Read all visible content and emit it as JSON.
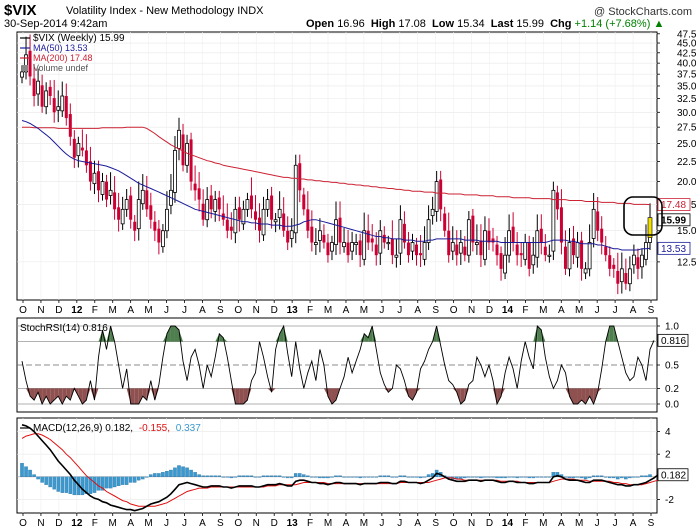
{
  "header": {
    "symbol": "$VIX",
    "name": "Volatility Index - New Methodology",
    "exchange": "INDX",
    "credit": "@ StockCharts.com",
    "date": "30-Sep-2014 9:42am",
    "open_label": "Open",
    "open": "16.96",
    "high_label": "High",
    "high": "17.08",
    "low_label": "Low",
    "low": "15.34",
    "last_label": "Last",
    "last": "15.99",
    "chg_label": "Chg",
    "chg": "+1.14 (+7.68%)",
    "chg_arrow": "▲"
  },
  "colors": {
    "up": "#000000",
    "down": "#cc0033",
    "ma50": "#1a1a99",
    "ma200": "#cc2233",
    "rsi_fill_hi": "#4f7f4f",
    "rsi_fill_lo": "#8f5050",
    "macd_hist": "#3a9ad0",
    "macd_line": "#000000",
    "signal_line": "#e01010"
  },
  "chart_data": [
    {
      "type": "candlestick",
      "panel": "price",
      "legend": [
        {
          "label": "$VIX (Weekly) 15.99",
          "color": "#000000"
        },
        {
          "label": "MA(50) 13.53",
          "color": "#1a1a99"
        },
        {
          "label": "MA(200) 17.48",
          "color": "#cc2233"
        },
        {
          "label": "Volume undef",
          "color": "#555555"
        }
      ],
      "yticks": [
        "47.5",
        "45.0",
        "42.5",
        "40.0",
        "37.5",
        "35.0",
        "32.5",
        "30.0",
        "27.5",
        "25.0",
        "22.5",
        "20.0",
        "17.5",
        "15.0",
        "12.5"
      ],
      "ylim": [
        10,
        48
      ],
      "scale": "log",
      "last_labels": [
        {
          "value": 17.48,
          "text": "17.48",
          "color": "#cc2233"
        },
        {
          "value": 15.99,
          "text": "15.99",
          "color": "#000000"
        },
        {
          "value": 13.53,
          "text": "13.53",
          "color": "#1a1a99"
        }
      ],
      "weeks": 157,
      "close": [
        38,
        42,
        37,
        33,
        36,
        31,
        34,
        33,
        30,
        31,
        33,
        29,
        26,
        23,
        25,
        24,
        22,
        20,
        21,
        19,
        20,
        18,
        19,
        17,
        16,
        17,
        18,
        16,
        15,
        18,
        19,
        17,
        16,
        15,
        14,
        15,
        17,
        19,
        24,
        27,
        22,
        25,
        20,
        19,
        18,
        16,
        18,
        17,
        18,
        17,
        16,
        15,
        15,
        17,
        16,
        17,
        18,
        17,
        16,
        15,
        17,
        18,
        16,
        16,
        17,
        15,
        14,
        15,
        22,
        19,
        17,
        15,
        14,
        14,
        15,
        14,
        13,
        14,
        16,
        14,
        14,
        13,
        14,
        14,
        13,
        15,
        14,
        14,
        13,
        15,
        14,
        14,
        13,
        13,
        16,
        14,
        13,
        14,
        13,
        13,
        14,
        16,
        17,
        20,
        17,
        15,
        13,
        14,
        13,
        14,
        13,
        16,
        14,
        14,
        13,
        15,
        14,
        14,
        13,
        12,
        13,
        15,
        14,
        13,
        13,
        14,
        12,
        13,
        15,
        14,
        13,
        13,
        19,
        17,
        14,
        12,
        14,
        13,
        14,
        12,
        12,
        14,
        17,
        15,
        14,
        13,
        12,
        12,
        11,
        12,
        11,
        12,
        13,
        12,
        13,
        14,
        16
      ],
      "ma50": [
        28.6,
        28.4,
        28.1,
        27.7,
        27.3,
        26.8,
        26.3,
        25.8,
        25.2,
        24.6,
        24.0,
        23.5,
        23.1,
        22.8,
        22.6,
        22.5,
        22.4,
        22.3,
        22.2,
        22.1,
        22.0,
        21.9,
        21.7,
        21.5,
        21.3,
        21.0,
        20.7,
        20.4,
        20.1,
        19.8,
        19.6,
        19.4,
        19.2,
        19.0,
        18.8,
        18.6,
        18.4,
        18.2,
        18.0,
        17.8,
        17.6,
        17.4,
        17.2,
        17.0,
        16.9,
        16.8,
        16.7,
        16.6,
        16.5,
        16.4,
        16.3,
        16.2,
        16.1,
        16.0,
        15.9,
        15.8,
        15.8,
        15.7,
        15.7,
        15.6,
        15.6,
        15.6,
        15.5,
        15.5,
        15.5,
        15.4,
        15.4,
        15.4,
        15.5,
        15.6,
        15.8,
        15.9,
        16.0,
        16.0,
        15.9,
        15.8,
        15.7,
        15.6,
        15.5,
        15.4,
        15.3,
        15.2,
        15.1,
        15.0,
        14.9,
        14.8,
        14.7,
        14.6,
        14.5,
        14.5,
        14.4,
        14.4,
        14.3,
        14.3,
        14.3,
        14.2,
        14.2,
        14.2,
        14.1,
        14.1,
        14.1,
        14.2,
        14.2,
        14.3,
        14.3,
        14.3,
        14.3,
        14.3,
        14.3,
        14.3,
        14.2,
        14.2,
        14.2,
        14.2,
        14.1,
        14.1,
        14.1,
        14.1,
        14.1,
        14.0,
        14.0,
        14.0,
        14.0,
        14.0,
        14.0,
        14.0,
        14.0,
        14.0,
        14.0,
        14.0,
        14.0,
        14.1,
        14.2,
        14.2,
        14.2,
        14.2,
        14.1,
        14.1,
        14.0,
        13.9,
        13.9,
        13.9,
        13.9,
        13.8,
        13.8,
        13.7,
        13.6,
        13.5,
        13.5,
        13.4,
        13.4,
        13.4,
        13.4,
        13.4,
        13.5,
        13.5,
        13.53
      ],
      "ma200": [
        27.5,
        27.5,
        27.5,
        27.4,
        27.4,
        27.4,
        27.4,
        27.4,
        27.4,
        27.3,
        27.3,
        27.3,
        27.3,
        27.3,
        27.3,
        27.3,
        27.3,
        27.3,
        27.3,
        27.3,
        27.4,
        27.4,
        27.4,
        27.4,
        27.4,
        27.4,
        27.5,
        27.5,
        27.5,
        27.5,
        27.5,
        27.3,
        26.9,
        26.5,
        26.0,
        25.6,
        25.2,
        24.8,
        24.5,
        24.2,
        23.9,
        23.6,
        23.4,
        23.2,
        23.0,
        22.8,
        22.6,
        22.5,
        22.3,
        22.2,
        22.0,
        21.9,
        21.8,
        21.7,
        21.6,
        21.5,
        21.4,
        21.3,
        21.2,
        21.1,
        21.0,
        20.9,
        20.8,
        20.7,
        20.6,
        20.5,
        20.5,
        20.4,
        20.4,
        20.3,
        20.3,
        20.2,
        20.2,
        20.1,
        20.1,
        20.0,
        20.0,
        19.9,
        19.9,
        19.8,
        19.8,
        19.7,
        19.7,
        19.6,
        19.6,
        19.5,
        19.5,
        19.4,
        19.4,
        19.3,
        19.3,
        19.2,
        19.2,
        19.1,
        19.1,
        19.0,
        19.0,
        18.9,
        18.9,
        18.9,
        18.8,
        18.8,
        18.8,
        18.7,
        18.7,
        18.7,
        18.6,
        18.6,
        18.6,
        18.6,
        18.5,
        18.5,
        18.5,
        18.5,
        18.4,
        18.4,
        18.4,
        18.4,
        18.3,
        18.3,
        18.3,
        18.3,
        18.2,
        18.2,
        18.2,
        18.2,
        18.2,
        18.1,
        18.1,
        18.1,
        18.1,
        18.1,
        18.0,
        18.0,
        18.0,
        18.0,
        17.9,
        17.9,
        17.9,
        17.9,
        17.8,
        17.8,
        17.8,
        17.8,
        17.7,
        17.7,
        17.7,
        17.7,
        17.6,
        17.6,
        17.6,
        17.6,
        17.5,
        17.5,
        17.5,
        17.5,
        17.48
      ]
    },
    {
      "type": "line",
      "panel": "stochrsi",
      "legend": "StochRSI(14) 0.816",
      "yticks": [
        "1.0",
        "0.8",
        "0.5",
        "0.2",
        "0.0"
      ],
      "ylim": [
        0,
        1
      ],
      "hi": 0.8,
      "lo": 0.2,
      "last_label": "0.816",
      "values": [
        0.55,
        0.3,
        0.1,
        0.05,
        0.15,
        0.0,
        0.1,
        0.0,
        0.05,
        0.1,
        0.0,
        0.1,
        0.05,
        0.2,
        0.1,
        0.0,
        0.05,
        0.3,
        0.05,
        0.6,
        0.95,
        0.7,
        1.0,
        0.8,
        0.5,
        0.2,
        0.45,
        0.0,
        0.0,
        0.0,
        0.1,
        0.05,
        0.3,
        0.05,
        0.25,
        0.6,
        0.9,
        1.0,
        1.0,
        0.95,
        0.55,
        0.3,
        0.6,
        0.7,
        0.5,
        0.2,
        0.5,
        0.35,
        0.6,
        0.9,
        0.85,
        0.6,
        0.3,
        0.0,
        0.0,
        0.0,
        0.05,
        0.3,
        0.4,
        0.8,
        0.6,
        0.35,
        0.15,
        0.7,
        0.9,
        1.0,
        0.65,
        0.35,
        0.8,
        0.45,
        0.2,
        0.4,
        0.55,
        0.3,
        0.7,
        0.5,
        0.1,
        0.0,
        0.05,
        0.2,
        0.35,
        0.6,
        0.4,
        0.55,
        0.7,
        0.9,
        0.85,
        1.0,
        0.7,
        0.4,
        0.25,
        0.15,
        0.2,
        0.5,
        0.45,
        0.3,
        0.1,
        0.05,
        0.15,
        0.45,
        0.55,
        0.7,
        0.8,
        1.0,
        0.75,
        0.5,
        0.3,
        0.25,
        0.15,
        0.0,
        0.05,
        0.25,
        0.3,
        0.6,
        0.5,
        0.35,
        0.5,
        0.3,
        0.0,
        0.1,
        0.4,
        0.6,
        0.45,
        0.2,
        0.55,
        0.8,
        0.6,
        0.45,
        1.0,
        0.95,
        0.6,
        0.35,
        0.2,
        0.3,
        0.5,
        0.4,
        0.1,
        0.0,
        0.0,
        0.05,
        0.0,
        0.1,
        0.0,
        0.15,
        0.45,
        0.8,
        1.0,
        1.0,
        0.8,
        0.6,
        0.4,
        0.3,
        0.35,
        0.6,
        0.5,
        0.3,
        0.7,
        0.816
      ]
    },
    {
      "type": "line",
      "panel": "macd",
      "legend_parts": [
        {
          "text": "MACD(12,26,9) 0.182,",
          "color": "#000000"
        },
        {
          "text": "-0.155,",
          "color": "#e01010"
        },
        {
          "text": "0.337",
          "color": "#3a9ad0"
        }
      ],
      "yticks": [
        "4",
        "2",
        "0",
        "-2"
      ],
      "ylim": [
        -3.2,
        5.2
      ],
      "last_label": "0.182",
      "macd": [
        4.6,
        4.5,
        4.3,
        4.0,
        3.6,
        3.2,
        2.8,
        2.4,
        1.9,
        1.4,
        1.0,
        0.6,
        0.2,
        -0.3,
        -0.7,
        -1.1,
        -1.4,
        -1.7,
        -1.9,
        -2.0,
        -2.2,
        -2.3,
        -2.5,
        -2.6,
        -2.7,
        -2.8,
        -2.9,
        -2.9,
        -3.0,
        -2.9,
        -2.8,
        -2.6,
        -2.4,
        -2.3,
        -2.2,
        -2.0,
        -1.8,
        -1.5,
        -1.1,
        -0.7,
        -0.6,
        -0.5,
        -0.6,
        -0.7,
        -0.8,
        -0.9,
        -0.9,
        -0.8,
        -0.8,
        -0.8,
        -0.9,
        -0.9,
        -1.0,
        -0.9,
        -0.8,
        -0.8,
        -0.8,
        -0.8,
        -0.9,
        -0.9,
        -0.8,
        -0.7,
        -0.7,
        -0.7,
        -0.6,
        -0.7,
        -0.8,
        -0.8,
        -0.4,
        -0.3,
        -0.3,
        -0.4,
        -0.5,
        -0.5,
        -0.6,
        -0.6,
        -0.7,
        -0.6,
        -0.5,
        -0.5,
        -0.6,
        -0.6,
        -0.6,
        -0.6,
        -0.7,
        -0.6,
        -0.6,
        -0.6,
        -0.6,
        -0.5,
        -0.5,
        -0.5,
        -0.6,
        -0.6,
        -0.4,
        -0.4,
        -0.5,
        -0.5,
        -0.5,
        -0.6,
        -0.5,
        -0.3,
        -0.1,
        0.3,
        0.2,
        0.0,
        -0.2,
        -0.3,
        -0.4,
        -0.4,
        -0.4,
        -0.3,
        -0.3,
        -0.3,
        -0.4,
        -0.3,
        -0.3,
        -0.3,
        -0.4,
        -0.5,
        -0.5,
        -0.4,
        -0.4,
        -0.5,
        -0.5,
        -0.5,
        -0.6,
        -0.6,
        -0.5,
        -0.5,
        -0.5,
        -0.5,
        0.0,
        0.1,
        0.0,
        -0.2,
        -0.3,
        -0.3,
        -0.3,
        -0.4,
        -0.5,
        -0.5,
        -0.3,
        -0.3,
        -0.3,
        -0.4,
        -0.5,
        -0.6,
        -0.7,
        -0.7,
        -0.8,
        -0.8,
        -0.7,
        -0.7,
        -0.6,
        -0.5,
        -0.3,
        -0.1,
        0.182
      ],
      "signal": [
        3.4,
        3.6,
        3.7,
        3.8,
        3.8,
        3.7,
        3.5,
        3.3,
        3.0,
        2.7,
        2.4,
        2.0,
        1.7,
        1.3,
        0.9,
        0.5,
        0.1,
        -0.2,
        -0.5,
        -0.8,
        -1.0,
        -1.3,
        -1.5,
        -1.7,
        -1.9,
        -2.1,
        -2.2,
        -2.4,
        -2.5,
        -2.6,
        -2.6,
        -2.6,
        -2.6,
        -2.6,
        -2.5,
        -2.4,
        -2.3,
        -2.1,
        -1.9,
        -1.7,
        -1.5,
        -1.3,
        -1.2,
        -1.1,
        -1.0,
        -1.0,
        -1.0,
        -0.9,
        -0.9,
        -0.9,
        -0.9,
        -0.9,
        -0.9,
        -0.9,
        -0.9,
        -0.9,
        -0.9,
        -0.9,
        -0.9,
        -0.9,
        -0.9,
        -0.8,
        -0.8,
        -0.8,
        -0.7,
        -0.7,
        -0.7,
        -0.7,
        -0.7,
        -0.6,
        -0.5,
        -0.5,
        -0.5,
        -0.5,
        -0.5,
        -0.5,
        -0.6,
        -0.6,
        -0.6,
        -0.6,
        -0.6,
        -0.6,
        -0.6,
        -0.6,
        -0.6,
        -0.6,
        -0.6,
        -0.6,
        -0.6,
        -0.6,
        -0.6,
        -0.6,
        -0.6,
        -0.6,
        -0.5,
        -0.5,
        -0.5,
        -0.5,
        -0.5,
        -0.5,
        -0.5,
        -0.5,
        -0.4,
        -0.3,
        -0.2,
        -0.1,
        -0.1,
        -0.1,
        -0.2,
        -0.2,
        -0.3,
        -0.3,
        -0.3,
        -0.3,
        -0.3,
        -0.3,
        -0.3,
        -0.3,
        -0.3,
        -0.4,
        -0.4,
        -0.4,
        -0.4,
        -0.4,
        -0.5,
        -0.5,
        -0.5,
        -0.5,
        -0.5,
        -0.5,
        -0.5,
        -0.5,
        -0.4,
        -0.3,
        -0.2,
        -0.2,
        -0.2,
        -0.2,
        -0.3,
        -0.3,
        -0.3,
        -0.4,
        -0.4,
        -0.4,
        -0.4,
        -0.4,
        -0.4,
        -0.5,
        -0.5,
        -0.6,
        -0.6,
        -0.7,
        -0.7,
        -0.7,
        -0.7,
        -0.6,
        -0.5,
        -0.4,
        -0.3,
        -0.155
      ]
    }
  ],
  "xaxis": {
    "labels": [
      "O",
      "N",
      "D",
      "12",
      "F",
      "M",
      "A",
      "M",
      "J",
      "J",
      "A",
      "S",
      "O",
      "N",
      "D",
      "13",
      "F",
      "M",
      "A",
      "M",
      "J",
      "J",
      "A",
      "S",
      "O",
      "N",
      "D",
      "14",
      "F",
      "M",
      "A",
      "M",
      "J",
      "J",
      "A",
      "S"
    ],
    "year_labels": [
      "12",
      "13",
      "14"
    ]
  }
}
